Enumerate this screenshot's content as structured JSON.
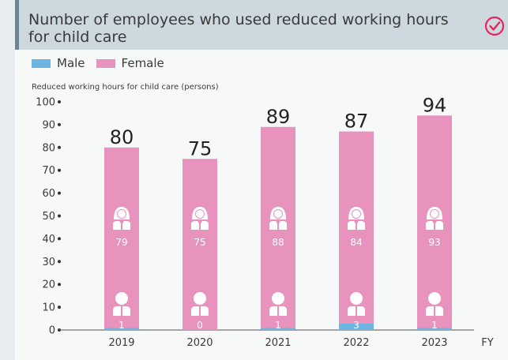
{
  "header": {
    "title": "Number of employees who used reduced working hours for child care"
  },
  "icons": {
    "check": "check-circle-icon",
    "female": "female-person-icon",
    "male": "male-person-icon"
  },
  "colors": {
    "male": "#6cb5e3",
    "female": "#e893bd",
    "accent": "#e8245f"
  },
  "chart_data": {
    "type": "bar",
    "stacked": true,
    "categories": [
      "2019",
      "2020",
      "2021",
      "2022",
      "2023"
    ],
    "series": [
      {
        "name": "Male",
        "values": [
          1,
          0,
          1,
          3,
          1
        ]
      },
      {
        "name": "Female",
        "values": [
          79,
          75,
          88,
          84,
          93
        ]
      }
    ],
    "totals": [
      80,
      75,
      89,
      87,
      94
    ],
    "ylabel": "Reduced working hours for child care (persons)",
    "xlabel": "FY",
    "ylim": [
      0,
      100
    ],
    "yticks": [
      0,
      10,
      20,
      30,
      40,
      50,
      60,
      70,
      80,
      90,
      100
    ],
    "legend": "top-left"
  }
}
